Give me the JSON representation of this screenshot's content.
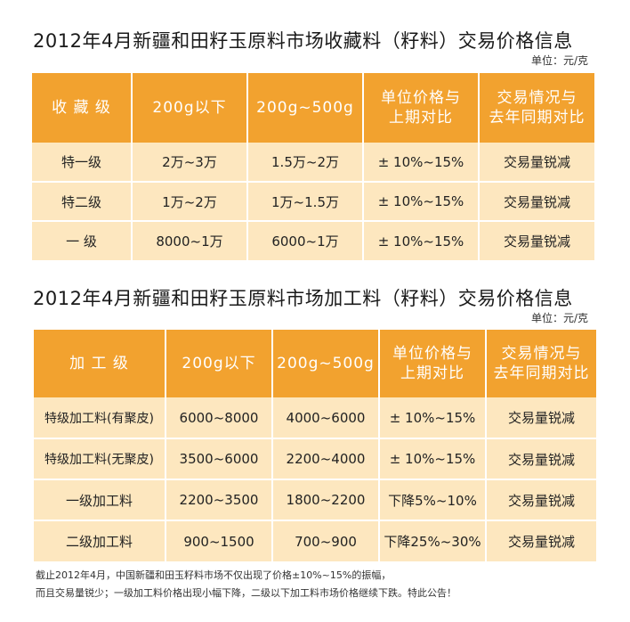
{
  "section1": {
    "title": "2012年4月新疆和田籽玉原料市场收藏料（籽料）交易价格信息",
    "unit": "单位：元/克",
    "headers": [
      "收 藏 级",
      "200g以下",
      "200g~500g",
      "单位价格与\n上期对比",
      "交易情况与\n去年同期对比"
    ],
    "rows": [
      [
        "特一级",
        "2万~3万",
        "1.5万~2万",
        "± 10%~15%",
        "交易量锐减"
      ],
      [
        "特二级",
        "1万~2万",
        "1万~1.5万",
        "± 10%~15%",
        "交易量锐减"
      ],
      [
        "一 级",
        "8000~1万",
        "6000~1万",
        "± 10%~15%",
        "交易量锐减"
      ]
    ]
  },
  "section2": {
    "title": "2012年4月新疆和田籽玉原料市场加工料（籽料）交易价格信息",
    "unit": "单位：元/克",
    "headers": [
      "加 工 级",
      "200g以下",
      "200g~500g",
      "单位价格与\n上期对比",
      "交易情况与\n去年同期对比"
    ],
    "rows": [
      [
        "特级加工料(有聚皮)",
        "6000~8000",
        "4000~6000",
        "± 10%~15%",
        "交易量锐减"
      ],
      [
        "特级加工料(无聚皮)",
        "3500~6000",
        "2200~4000",
        "± 10%~15%",
        "交易量锐减"
      ],
      [
        "一级加工料",
        "2200~3500",
        "1800~2200",
        "下降5%~10%",
        "交易量锐减"
      ],
      [
        "二级加工料",
        "900~1500",
        "700~900",
        "下降25%~30%",
        "交易量锐减"
      ]
    ]
  },
  "footnote": {
    "line1": "截止2012年4月，中国新疆和田玉籽料市场不仅出现了价格±10%~15%的振幅，",
    "line2": "而且交易量锐少；一级加工料价格出现小幅下降，二级以下加工料市场价格继续下跌。特此公告！"
  },
  "colors": {
    "header_bg": "#f2a22f",
    "row_bg": "#fde7bf",
    "header_text": "#ffffff"
  }
}
